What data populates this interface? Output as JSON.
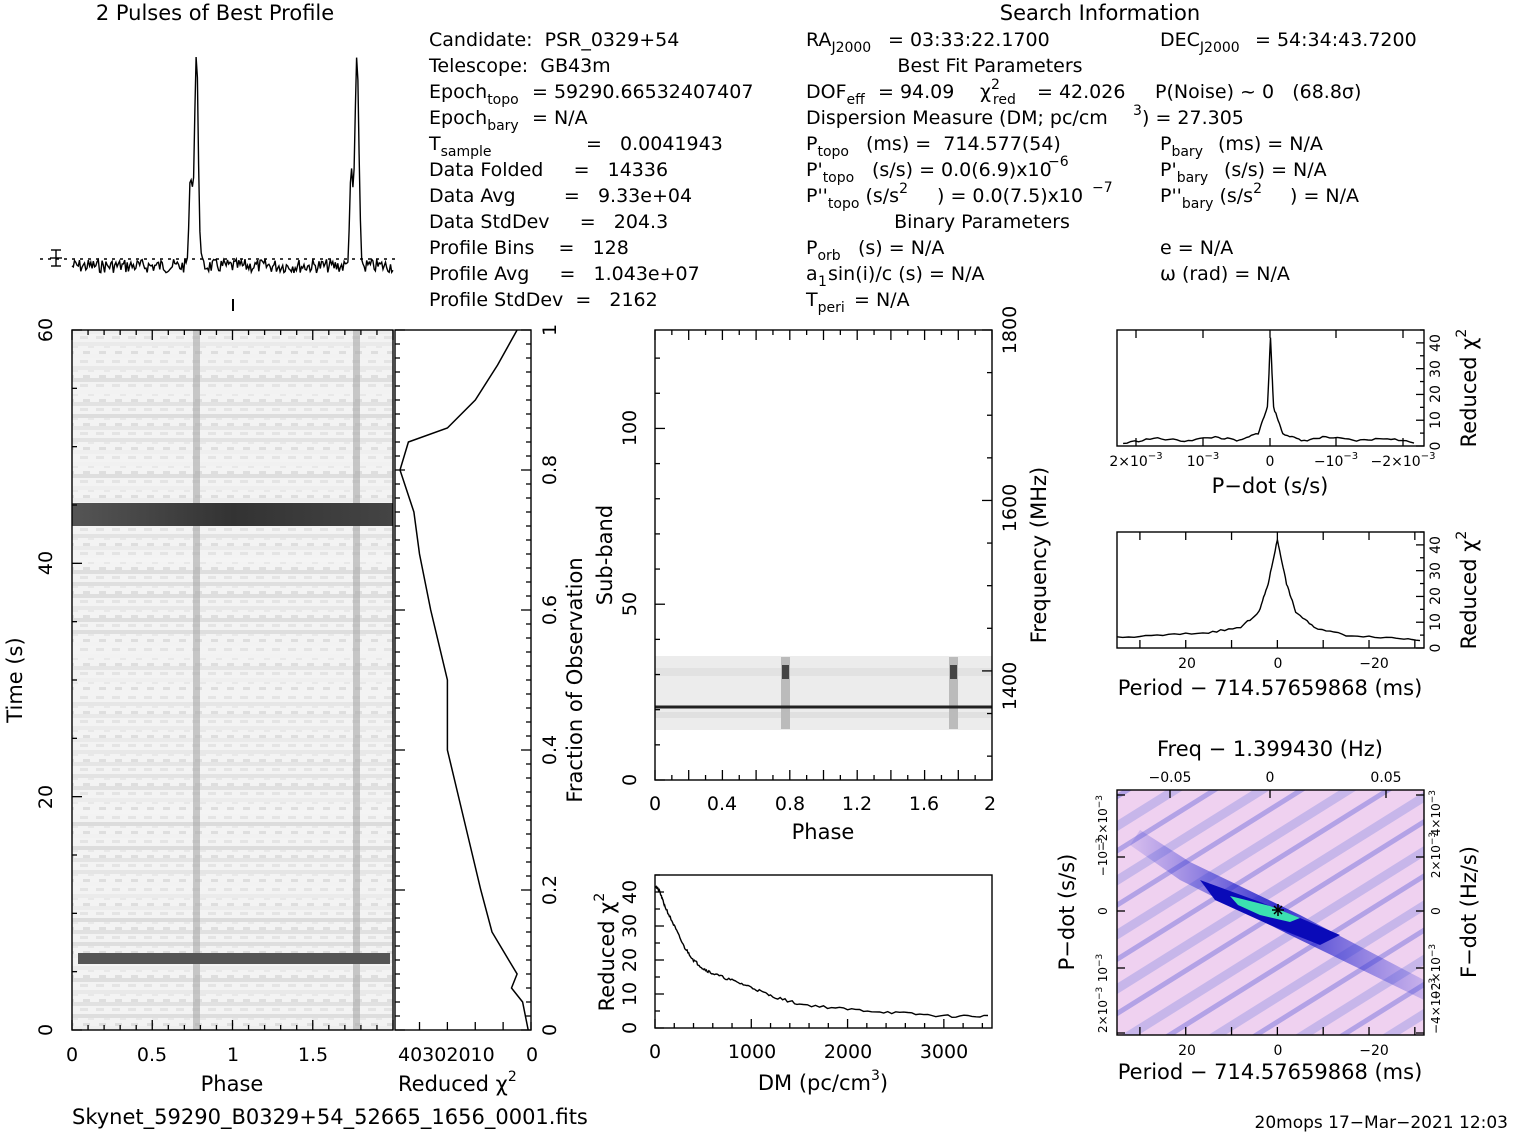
{
  "profile": {
    "title": "2 Pulses of Best Profile",
    "peaks": [
      0.775,
      1.775
    ]
  },
  "info": {
    "search_title": "Search Information",
    "best_fit_title": "Best Fit Parameters",
    "binary_title": "Binary Parameters",
    "candidate": "Candidate:  PSR_0329+54",
    "telescope": "Telescope:  GB43m",
    "epoch_topo": "= 59290.66532407407",
    "epoch_bary": "= N/A",
    "tsample": "=   0.0041943",
    "data_folded": "Data Folded     =   14336",
    "data_avg": "Data Avg        =   9.33e+04",
    "data_stddev": "Data StdDev     =   204.3",
    "profile_bins": "Profile Bins    =   128",
    "profile_avg": "Profile Avg     =   1.043e+07",
    "profile_stddev": "Profile StdDev  =   2162",
    "ra": "= 03:33:22.1700",
    "dec": "= 54:34:43.7200",
    "dof": "= 94.09",
    "chi2red": "= 42.026",
    "pnoise": "P(Noise) ~ 0   (68.8σ)",
    "dm_line": "Dispersion Measure (DM; pc/cm",
    "dm_value": ") = 27.305",
    "ptopo": "(ms) =  714.577(54)",
    "pbary": "(ms) = N/A",
    "pdtopo": "(s/s) = 0.0(6.9)x10",
    "pdtopo_exp": "−6",
    "pdbary": "(s/s) = N/A",
    "pddtopo_val": ") = 0.0(7.5)x10",
    "pddtopo_exp": "−7",
    "pddbary_val": ") = N/A",
    "porb": "(s) = N/A",
    "e": "e = N/A",
    "a1sini": "a",
    "a1sini_rest": "sin(i)/c (s) = N/A",
    "omega": "ω (rad) = N/A",
    "tperi": "= N/A"
  },
  "footer": {
    "filename": "Skynet_59290_B0329+54_52665_1656_0001.fits",
    "stamp": "20mops 17−Mar−2021 12:03"
  },
  "time_phase": {
    "xlabel": "Phase",
    "ylabel": "Time (s)",
    "xticks": [
      "0",
      "0.5",
      "1",
      "1.5"
    ],
    "yticks": [
      "0",
      "20",
      "40",
      "60"
    ],
    "bright_rows_s": [
      44.2,
      6.4
    ]
  },
  "time_chi2": {
    "xlabel": "Reduced χ",
    "xticks": [
      "40302010",
      "0"
    ],
    "right_ylabel": "Fraction of Observation",
    "right_yticks": [
      "0",
      "0.2",
      "0.4",
      "0.6",
      "0.8",
      "1"
    ]
  },
  "subband": {
    "xlabel": "Phase",
    "ylabel": "Sub-band",
    "right_ylabel": "Frequency (MHz)",
    "xticks": [
      "0",
      "0.4",
      "0.8",
      "1.2",
      "1.6",
      "2"
    ],
    "yticks": [
      "0",
      "50",
      "100"
    ],
    "right_yticks": [
      "1400",
      "1600",
      "1800"
    ]
  },
  "dm_chi2": {
    "xlabel": "DM (pc/cm",
    "ylabel": "Reduced χ",
    "xticks": [
      "0",
      "1000",
      "2000",
      "3000"
    ],
    "yticks": [
      "0",
      "10",
      "20",
      "30",
      "40"
    ]
  },
  "pdot_chi2": {
    "xlabel": "P−dot (s/s)",
    "ylabel": "Reduced χ",
    "xticks": [
      "2×10",
      "10",
      "0",
      "−10",
      "−2×10"
    ],
    "yticks": [
      "0",
      "10",
      "20",
      "30",
      "40"
    ]
  },
  "period_chi2": {
    "xlabel": "Period − 714.57659868 (ms)",
    "ylabel": "Reduced χ",
    "xticks": [
      "20",
      "0",
      "−20"
    ],
    "yticks": [
      "0",
      "10",
      "20",
      "30",
      "40"
    ]
  },
  "ppdot": {
    "title": "Freq − 1.399430 (Hz)",
    "xlabel": "Period − 714.57659868 (ms)",
    "ylabel": "P−dot (s/s)",
    "right_ylabel": "F−dot (Hz/s)",
    "xticks": [
      "20",
      "0",
      "−20"
    ],
    "top_ticks": [
      "−0.05",
      "0",
      "0.05"
    ],
    "colors": {
      "background": "#f5d8f5",
      "stripe": "#3a3ad8",
      "peak": "#3ce0b0",
      "marker": "#000000"
    }
  },
  "chart_data": [
    {
      "type": "line",
      "title": "2 Pulses of Best Profile",
      "x_range": [
        0,
        2
      ],
      "peak_phases": [
        0.775,
        1.775
      ]
    },
    {
      "type": "heatmap",
      "xlabel": "Phase",
      "ylabel": "Time (s)",
      "xlim": [
        0,
        2
      ],
      "ylim": [
        0,
        60
      ],
      "pulse_phases": [
        0.775,
        1.775
      ],
      "bright_rows_s": [
        44.2,
        6.4
      ]
    },
    {
      "type": "line",
      "xlabel": "Reduced χ2",
      "ylabel": "Fraction of Observation",
      "ylim": [
        0,
        1
      ],
      "x": [
        1,
        3,
        7,
        5,
        8,
        14,
        18,
        24,
        30,
        30,
        36,
        40,
        42,
        47
      ],
      "y": [
        0,
        0.04,
        0.06,
        0.08,
        0.1,
        0.14,
        0.2,
        0.3,
        0.4,
        0.5,
        0.6,
        0.68,
        0.74,
        0.8
      ]
    },
    {
      "type": "heatmap",
      "xlabel": "Phase",
      "ylabel": "Sub-band",
      "xlim": [
        0,
        2
      ],
      "ylim": [
        0,
        128
      ],
      "right_ylabel": "Frequency (MHz)",
      "active_subbands": [
        14,
        35
      ],
      "bright_subband": 20.5
    },
    {
      "type": "line",
      "xlabel": "DM (pc/cm3)",
      "ylabel": "Reduced χ2",
      "xlim": [
        0,
        3500
      ],
      "ylim": [
        0,
        45
      ],
      "x": [
        0,
        50,
        100,
        200,
        300,
        400,
        500,
        600,
        800,
        1000,
        1200,
        1500,
        2000,
        2500,
        3000,
        3500
      ],
      "y": [
        42,
        40,
        36,
        30,
        24,
        20,
        17.5,
        16,
        14,
        12,
        9.5,
        7,
        5.5,
        4.5,
        3.5,
        3.5
      ]
    },
    {
      "type": "line",
      "xlabel": "P−dot (s/s)",
      "ylabel": "Reduced χ2",
      "xlim": [
        0.0025,
        -0.0025
      ],
      "ylim": [
        0,
        45
      ],
      "x": [
        0.0024,
        0.0019,
        0.0014,
        0.0009,
        0.0005,
        0.0002,
        5e-05,
        0,
        -5e-05,
        -0.0002,
        -0.0005,
        -0.0009,
        -0.0014,
        -0.0019,
        -0.0024
      ],
      "y": [
        1,
        3,
        2,
        3.5,
        2,
        5,
        15,
        42,
        15,
        5,
        2,
        3.5,
        2,
        3,
        1
      ]
    },
    {
      "type": "line",
      "xlabel": "Period − 714.57659868 (ms)",
      "ylabel": "Reduced χ2",
      "xlim": [
        35,
        -32
      ],
      "ylim": [
        0,
        45
      ],
      "x": [
        35,
        25,
        15,
        8,
        4,
        2,
        0,
        -2,
        -4,
        -8,
        -15,
        -25,
        -32
      ],
      "y": [
        4,
        5,
        6,
        8,
        14,
        25,
        42,
        25,
        14,
        8,
        5,
        4,
        3
      ]
    },
    {
      "type": "heatmap",
      "title": "Freq − 1.399430 (Hz)",
      "xlabel": "Period − 714.57659868 (ms)",
      "ylabel": "P−dot (s/s)",
      "right_ylabel": "F−dot (Hz/s)",
      "xlim": [
        35,
        -32
      ],
      "best_fit": [
        0,
        0
      ]
    }
  ]
}
